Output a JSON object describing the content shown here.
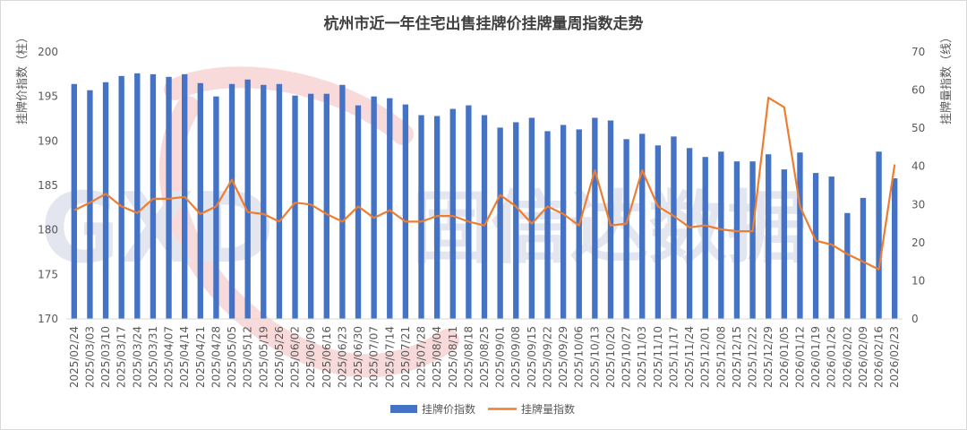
{
  "chart_data": {
    "type": "bar",
    "title": "杭州市近一年住宅出售挂牌价挂牌量周指数走势",
    "ylabel": "挂牌价指数（柱）",
    "y2label": "挂牌量指数（线）",
    "ylim": [
      170,
      200
    ],
    "y2lim": [
      0,
      70
    ],
    "yticks": [
      170,
      175,
      180,
      185,
      190,
      195,
      200
    ],
    "y2ticks": [
      0,
      10,
      20,
      30,
      40,
      50,
      60,
      70
    ],
    "legend_position": "bottom",
    "grid": false,
    "categories": [
      "2025/02/24",
      "2025/03/03",
      "2025/03/10",
      "2025/03/17",
      "2025/03/24",
      "2025/03/31",
      "2025/04/07",
      "2025/04/14",
      "2025/04/21",
      "2025/04/28",
      "2025/05/05",
      "2025/05/12",
      "2025/05/19",
      "2025/05/26",
      "2025/06/02",
      "2025/06/09",
      "2025/06/16",
      "2025/06/23",
      "2025/06/30",
      "2025/07/07",
      "2025/07/14",
      "2025/07/21",
      "2025/07/28",
      "2025/08/04",
      "2025/08/11",
      "2025/08/18",
      "2025/08/25",
      "2025/09/01",
      "2025/09/08",
      "2025/09/15",
      "2025/09/22",
      "2025/09/29",
      "2025/10/06",
      "2025/10/13",
      "2025/10/20",
      "2025/10/27",
      "2025/11/03",
      "2025/11/10",
      "2025/11/17",
      "2025/11/24",
      "2025/12/01",
      "2025/12/08",
      "2025/12/15",
      "2025/12/22",
      "2025/12/29",
      "2026/01/05",
      "2026/01/12",
      "2026/01/19",
      "2026/01/26",
      "2026/02/02",
      "2026/02/09",
      "2026/02/16",
      "2026/02/23"
    ],
    "series": [
      {
        "name": "挂牌价指数",
        "type": "bar",
        "axis": "left",
        "color": "#4472c4",
        "values": [
          196.4,
          195.7,
          196.6,
          197.3,
          197.6,
          197.5,
          197.2,
          197.5,
          196.5,
          195.0,
          196.4,
          196.9,
          196.3,
          196.4,
          195.1,
          195.3,
          195.3,
          196.3,
          194.0,
          195.0,
          194.8,
          194.1,
          192.9,
          192.8,
          193.6,
          194.0,
          192.9,
          191.5,
          192.1,
          192.6,
          191.1,
          191.8,
          191.3,
          192.6,
          192.3,
          190.2,
          190.8,
          189.5,
          190.5,
          189.2,
          188.2,
          188.8,
          187.7,
          187.7,
          188.5,
          186.8,
          188.7,
          186.4,
          186.0,
          181.9,
          183.6,
          188.8,
          185.8
        ]
      },
      {
        "name": "挂牌量指数",
        "type": "line",
        "axis": "right",
        "color": "#ed7d31",
        "values": [
          28.5,
          30.5,
          32.8,
          29.5,
          27.8,
          31.5,
          31.5,
          32.0,
          27.5,
          29.5,
          36.5,
          28.0,
          27.5,
          25.5,
          30.5,
          30.0,
          27.5,
          25.5,
          29.5,
          26.5,
          28.5,
          25.5,
          25.5,
          27.0,
          27.0,
          25.5,
          24.5,
          32.5,
          29.5,
          25.0,
          29.5,
          27.5,
          24.5,
          39.0,
          24.5,
          25.0,
          39.0,
          29.5,
          27.0,
          24.0,
          24.5,
          23.5,
          23.0,
          23.0,
          58.0,
          55.5,
          29.5,
          20.5,
          19.5,
          17.0,
          15.0,
          13.0,
          40.5
        ]
      }
    ]
  },
  "watermark": {
    "latin": "GXD",
    "cjk": "固信达数据"
  }
}
